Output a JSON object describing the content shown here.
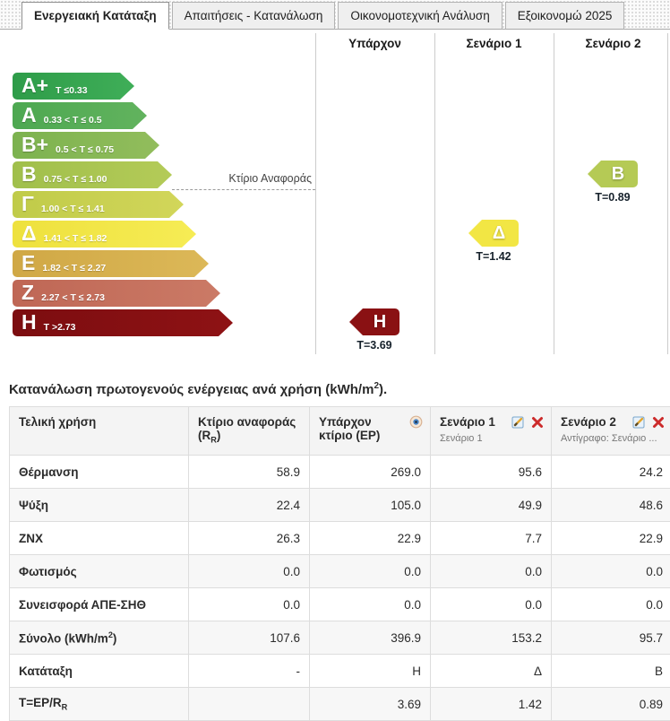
{
  "tabs": [
    {
      "label": "Ενεργειακή Κατάταξη",
      "active": true
    },
    {
      "label": "Απαιτήσεις - Κατανάλωση",
      "active": false
    },
    {
      "label": "Οικονομοτεχνική Ανάλυση",
      "active": false
    },
    {
      "label": "Εξοικονομώ 2025",
      "active": false
    }
  ],
  "chart": {
    "columns": [
      "Υπάρχον",
      "Σενάριο 1",
      "Σενάριο 2"
    ],
    "reference_line_label": "Κτίριο Αναφοράς",
    "bands": [
      {
        "grade": "A+",
        "range": "T ≤0.33",
        "color": "#2e9c49",
        "tip": "#3fae58"
      },
      {
        "grade": "A",
        "range": "0.33 < T ≤ 0.5",
        "color": "#4da851",
        "tip": "#62b35e"
      },
      {
        "grade": "B+",
        "range": "0.5 < T ≤ 0.75",
        "color": "#7cb24f",
        "tip": "#92bd5c"
      },
      {
        "grade": "B",
        "range": "0.75 < T ≤ 1.00",
        "color": "#a0bf4b",
        "tip": "#b4cb58"
      },
      {
        "grade": "Γ",
        "range": "1.00 < T ≤ 1.41",
        "color": "#c0cb49",
        "tip": "#d2d65a"
      },
      {
        "grade": "Δ",
        "range": "1.41 < T ≤ 1.82",
        "color": "#eee13d",
        "tip": "#f6ec55"
      },
      {
        "grade": "E",
        "range": "1.82 < T ≤ 2.27",
        "color": "#d0a845",
        "tip": "#dcb858"
      },
      {
        "grade": "Z",
        "range": "2.27 < T ≤ 2.73",
        "color": "#bf6755",
        "tip": "#cb7a66"
      },
      {
        "grade": "H",
        "range": "T >2.73",
        "color": "#7c0d10",
        "tip": "#8e1214"
      }
    ],
    "markers": [
      {
        "column": "Υπάρχον",
        "grade": "H",
        "t_label": "T=3.69",
        "color": "#8a1113"
      },
      {
        "column": "Σενάριο 1",
        "grade": "Δ",
        "t_label": "T=1.42",
        "color": "#f2e644"
      },
      {
        "column": "Σενάριο 2",
        "grade": "B",
        "t_label": "T=0.89",
        "color": "#b5ca55"
      }
    ]
  },
  "table": {
    "title_pre": "Κατανάλωση πρωτογενούς ενέργειας ανά χρήση (kWh/m",
    "title_sup": "2",
    "title_post": ").",
    "headers": {
      "final_use": "Τελική χρήση",
      "reference_line1": "Κτίριο αναφοράς",
      "reference_sym_pre": "(R",
      "reference_sym_sub": "R",
      "reference_sym_post": ")",
      "existing": "Υπάρχον κτίριο (ΕΡ)",
      "scenario1_title": "Σενάριο 1",
      "scenario1_subtitle": "Σενάριο 1",
      "scenario2_title": "Σενάριο 2",
      "scenario2_subtitle": "Αντίγραφο: Σενάριο ...",
      "eye_icon": "visibility-toggle",
      "edit_icon": "edit-scenario",
      "delete_icon": "delete-scenario"
    },
    "rows": [
      {
        "label": [
          {
            "t": "Θέρμανση"
          }
        ],
        "values": [
          "58.9",
          "269.0",
          "95.6",
          "24.2"
        ]
      },
      {
        "label": [
          {
            "t": "Ψύξη"
          }
        ],
        "values": [
          "22.4",
          "105.0",
          "49.9",
          "48.6"
        ]
      },
      {
        "label": [
          {
            "t": "ΖΝΧ"
          }
        ],
        "values": [
          "26.3",
          "22.9",
          "7.7",
          "22.9"
        ]
      },
      {
        "label": [
          {
            "t": "Φωτισμός"
          }
        ],
        "values": [
          "0.0",
          "0.0",
          "0.0",
          "0.0"
        ]
      },
      {
        "label": [
          {
            "t": "Συνεισφορά ΑΠΕ-ΣΗΘ"
          }
        ],
        "values": [
          "0.0",
          "0.0",
          "0.0",
          "0.0"
        ]
      },
      {
        "label": [
          {
            "t": "Σύνολο (kWh/m"
          },
          {
            "t": "2",
            "s": "sup"
          },
          {
            "t": ")"
          }
        ],
        "values": [
          "107.6",
          "396.9",
          "153.2",
          "95.7"
        ]
      },
      {
        "label": [
          {
            "t": "Κατάταξη"
          }
        ],
        "values": [
          "-",
          "Η",
          "Δ",
          "Β"
        ]
      },
      {
        "label": [
          {
            "t": "T=EP/R"
          },
          {
            "t": "R",
            "s": "sub"
          }
        ],
        "values": [
          "",
          "3.69",
          "1.42",
          "0.89"
        ]
      }
    ]
  }
}
